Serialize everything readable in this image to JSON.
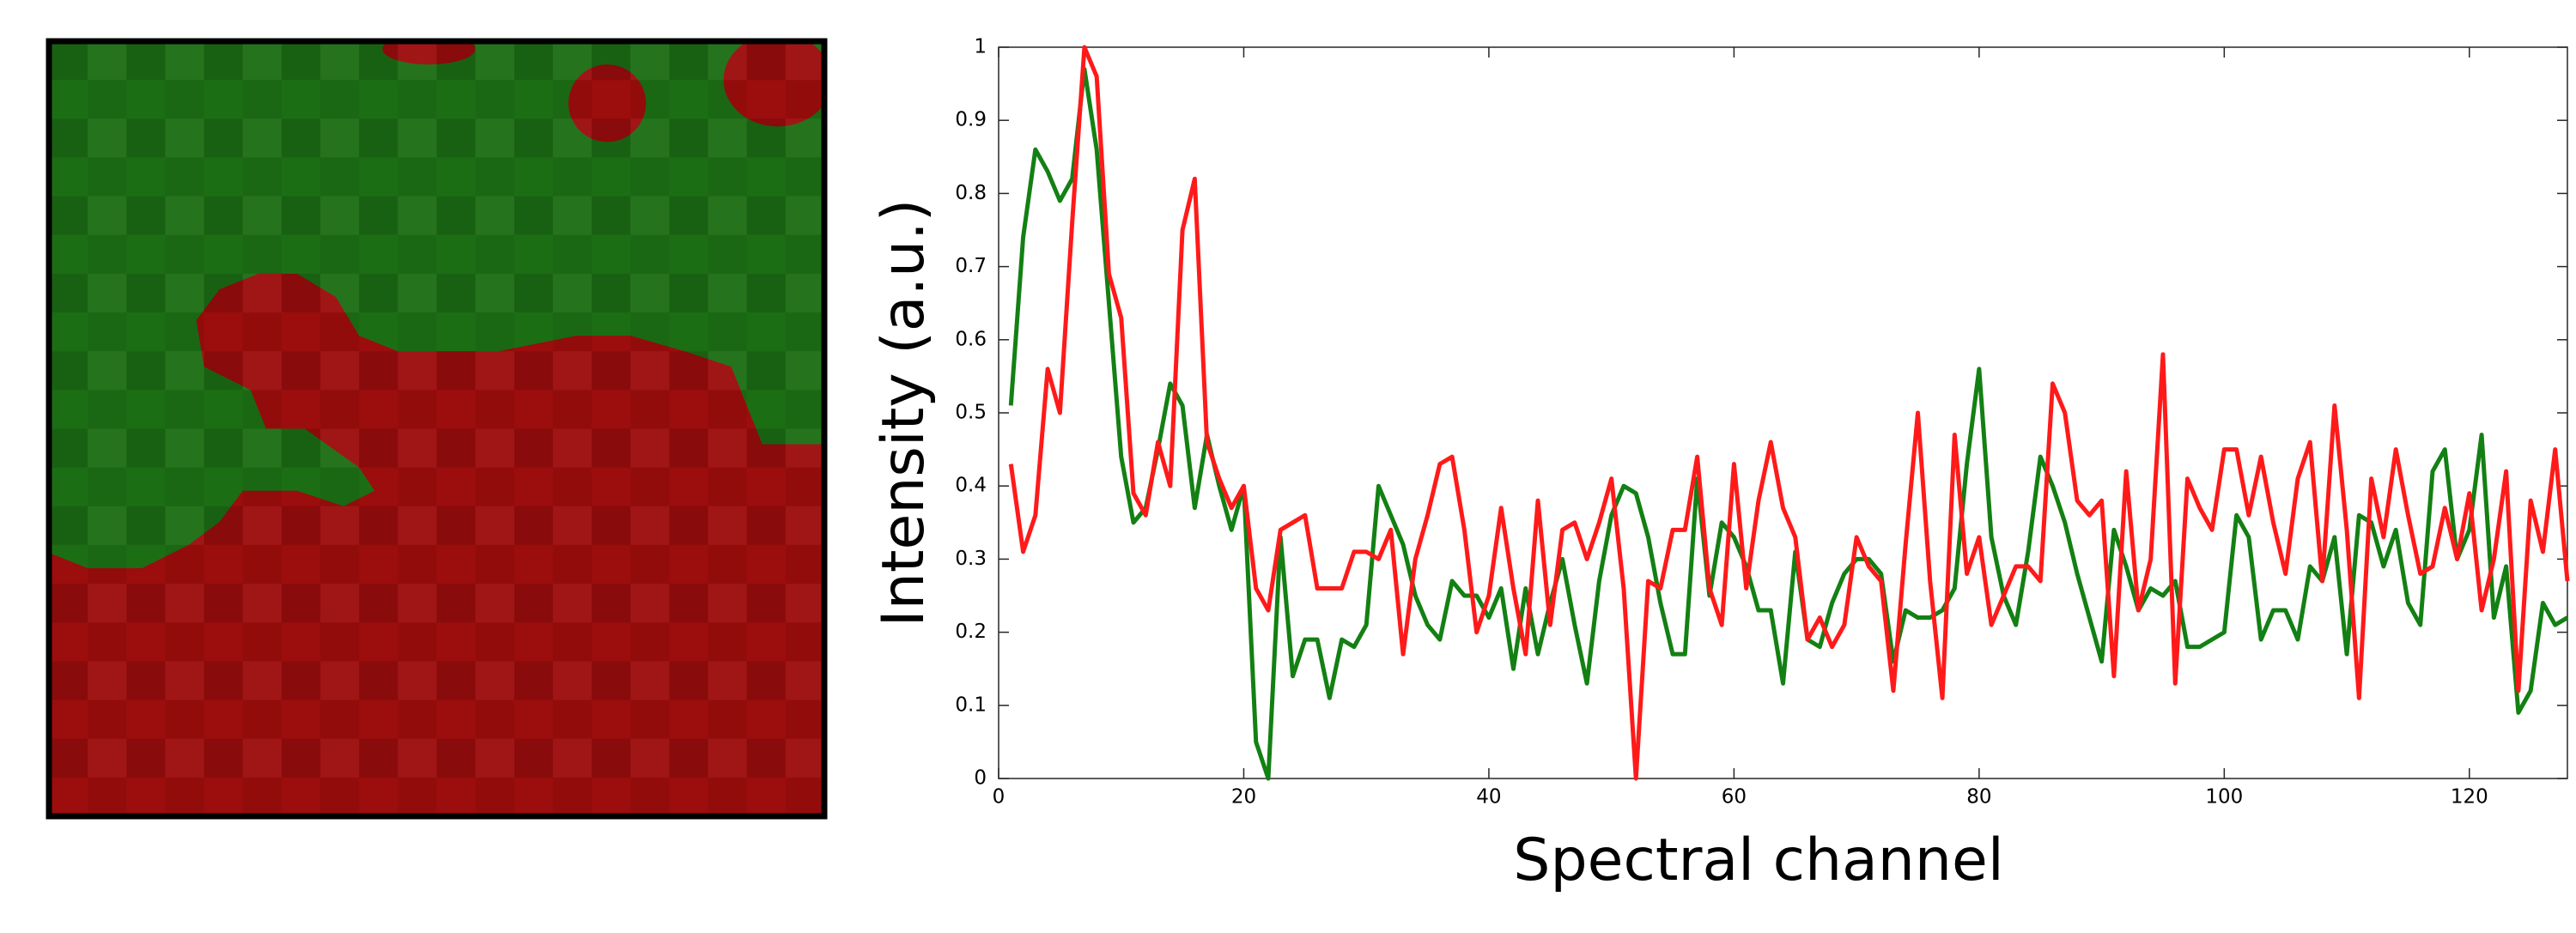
{
  "chart_data": {
    "type": "line",
    "x_label": "Spectral channel",
    "y_label": "Intensity (a.u.)",
    "x": [
      1,
      2,
      3,
      4,
      5,
      6,
      7,
      8,
      9,
      10,
      11,
      12,
      13,
      14,
      15,
      16,
      17,
      18,
      19,
      20,
      21,
      22,
      23,
      24,
      25,
      26,
      27,
      28,
      29,
      30,
      31,
      32,
      33,
      34,
      35,
      36,
      37,
      38,
      39,
      40,
      41,
      42,
      43,
      44,
      45,
      46,
      47,
      48,
      49,
      50,
      51,
      52,
      53,
      54,
      55,
      56,
      57,
      58,
      59,
      60,
      61,
      62,
      63,
      64,
      65,
      66,
      67,
      68,
      69,
      70,
      71,
      72,
      73,
      74,
      75,
      76,
      77,
      78,
      79,
      80,
      81,
      82,
      83,
      84,
      85,
      86,
      87,
      88,
      89,
      90,
      91,
      92,
      93,
      94,
      95,
      96,
      97,
      98,
      99,
      100,
      101,
      102,
      103,
      104,
      105,
      106,
      107,
      108,
      109,
      110,
      111,
      112,
      113,
      114,
      115,
      116,
      117,
      118,
      119,
      120,
      121,
      122,
      123,
      124,
      125,
      126,
      127,
      128
    ],
    "series": [
      {
        "color": "#138013",
        "values": [
          0.51,
          0.74,
          0.86,
          0.83,
          0.79,
          0.82,
          0.97,
          0.86,
          0.65,
          0.44,
          0.35,
          0.37,
          0.45,
          0.54,
          0.51,
          0.37,
          0.47,
          0.4,
          0.34,
          0.4,
          0.05,
          0.0,
          0.33,
          0.14,
          0.19,
          0.19,
          0.11,
          0.19,
          0.18,
          0.21,
          0.4,
          0.36,
          0.32,
          0.25,
          0.21,
          0.19,
          0.27,
          0.25,
          0.25,
          0.22,
          0.26,
          0.15,
          0.26,
          0.17,
          0.24,
          0.3,
          0.21,
          0.13,
          0.27,
          0.36,
          0.4,
          0.39,
          0.33,
          0.24,
          0.17,
          0.17,
          0.41,
          0.25,
          0.35,
          0.33,
          0.29,
          0.23,
          0.23,
          0.13,
          0.31,
          0.19,
          0.18,
          0.24,
          0.28,
          0.3,
          0.3,
          0.28,
          0.16,
          0.23,
          0.22,
          0.22,
          0.23,
          0.26,
          0.43,
          0.56,
          0.33,
          0.25,
          0.21,
          0.31,
          0.44,
          0.4,
          0.35,
          0.28,
          0.22,
          0.16,
          0.34,
          0.29,
          0.23,
          0.26,
          0.25,
          0.27,
          0.18,
          0.18,
          0.19,
          0.2,
          0.36,
          0.33,
          0.19,
          0.23,
          0.23,
          0.19,
          0.29,
          0.27,
          0.33,
          0.17,
          0.36,
          0.35,
          0.29,
          0.34,
          0.24,
          0.21,
          0.42,
          0.45,
          0.3,
          0.34,
          0.47,
          0.22,
          0.29,
          0.09,
          0.12,
          0.24,
          0.21,
          0.22
        ]
      },
      {
        "color": "#ff1a1a",
        "values": [
          0.43,
          0.31,
          0.36,
          0.56,
          0.5,
          0.76,
          1.0,
          0.96,
          0.69,
          0.63,
          0.39,
          0.36,
          0.46,
          0.4,
          0.75,
          0.82,
          0.46,
          0.41,
          0.37,
          0.4,
          0.26,
          0.23,
          0.34,
          0.35,
          0.36,
          0.26,
          0.26,
          0.26,
          0.31,
          0.31,
          0.3,
          0.34,
          0.17,
          0.3,
          0.36,
          0.43,
          0.44,
          0.34,
          0.2,
          0.25,
          0.37,
          0.26,
          0.17,
          0.38,
          0.21,
          0.34,
          0.35,
          0.3,
          0.35,
          0.41,
          0.26,
          0.0,
          0.27,
          0.26,
          0.34,
          0.34,
          0.44,
          0.26,
          0.21,
          0.43,
          0.26,
          0.38,
          0.46,
          0.37,
          0.33,
          0.19,
          0.22,
          0.18,
          0.21,
          0.33,
          0.29,
          0.27,
          0.12,
          0.32,
          0.5,
          0.27,
          0.11,
          0.47,
          0.28,
          0.33,
          0.21,
          0.25,
          0.29,
          0.29,
          0.27,
          0.54,
          0.5,
          0.38,
          0.36,
          0.38,
          0.14,
          0.42,
          0.23,
          0.3,
          0.58,
          0.13,
          0.41,
          0.37,
          0.34,
          0.45,
          0.45,
          0.36,
          0.44,
          0.35,
          0.28,
          0.41,
          0.46,
          0.27,
          0.51,
          0.34,
          0.11,
          0.41,
          0.33,
          0.45,
          0.36,
          0.28,
          0.29,
          0.37,
          0.3,
          0.39,
          0.23,
          0.3,
          0.42,
          0.12,
          0.38,
          0.31,
          0.45,
          0.27
        ]
      }
    ],
    "xlim": [
      0,
      128
    ],
    "xticks": [
      0,
      20,
      40,
      60,
      80,
      100,
      120
    ],
    "ylim": [
      0,
      1
    ],
    "yticks": [
      0,
      0.1,
      0.2,
      0.3,
      0.4,
      0.5,
      0.6,
      0.7,
      0.8,
      0.9,
      1
    ],
    "grid": false
  }
}
